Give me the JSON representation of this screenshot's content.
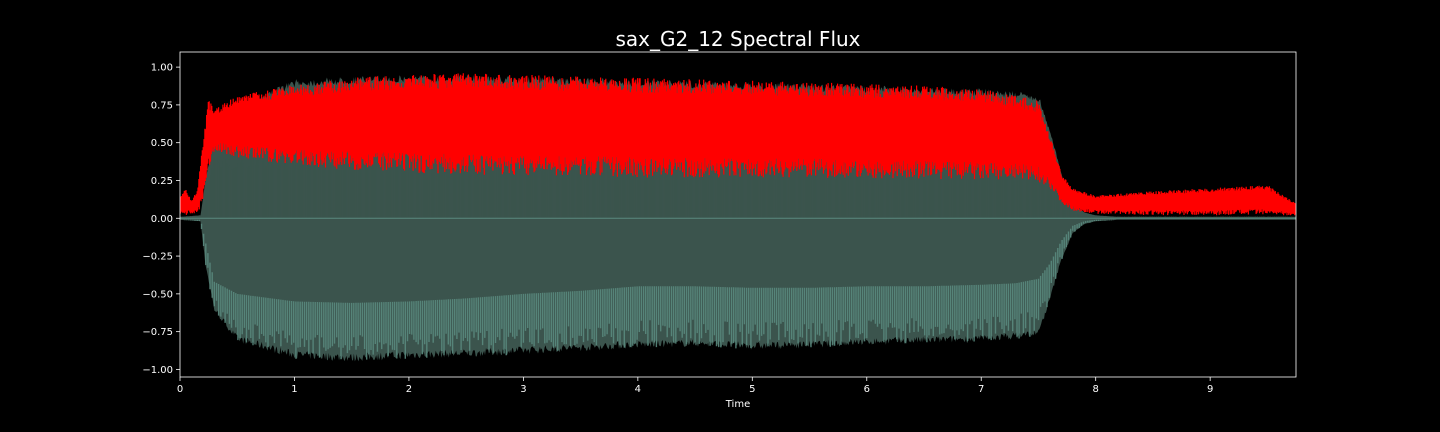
{
  "chart_data": {
    "type": "area",
    "title": "sax_G2_12 Spectral Flux",
    "xlabel": "Time",
    "ylabel": "",
    "xlim": [
      0,
      9.75
    ],
    "ylim": [
      -1.05,
      1.1
    ],
    "xticks": [
      0,
      1,
      2,
      3,
      4,
      5,
      6,
      7,
      8,
      9
    ],
    "xtick_labels": [
      "0",
      "1",
      "2",
      "3",
      "4",
      "5",
      "6",
      "7",
      "8",
      "9"
    ],
    "yticks": [
      1.0,
      0.75,
      0.5,
      0.25,
      0.0,
      -0.25,
      -0.5,
      -0.75,
      -1.0
    ],
    "ytick_labels": [
      "1.00",
      "0.75",
      "0.50",
      "0.25",
      "0.00",
      "−0.25",
      "−0.50",
      "−0.75",
      "−1.00"
    ],
    "grid": false,
    "legend": "none",
    "background": "#000000",
    "axes_color": "#ffffff",
    "series": [
      {
        "kind": "waveform-envelope",
        "color_outer": "#3b544d",
        "color_inner": "#5a8a7e",
        "x": [
          0,
          0.18,
          0.22,
          0.3,
          0.5,
          1.0,
          1.5,
          2.0,
          2.5,
          3.0,
          3.5,
          4.0,
          4.5,
          5.0,
          5.5,
          6.0,
          6.5,
          7.0,
          7.3,
          7.5,
          7.6,
          7.7,
          7.8,
          7.9,
          8.0,
          8.2,
          9.0,
          9.75
        ],
        "upper": [
          0.01,
          0.02,
          0.25,
          0.55,
          0.75,
          0.92,
          0.94,
          0.95,
          0.95,
          0.94,
          0.93,
          0.92,
          0.91,
          0.9,
          0.89,
          0.88,
          0.87,
          0.86,
          0.84,
          0.82,
          0.6,
          0.3,
          0.1,
          0.04,
          0.02,
          0.01,
          0.01,
          0.01
        ],
        "lower": [
          -0.01,
          -0.02,
          -0.3,
          -0.62,
          -0.82,
          -0.93,
          -0.95,
          -0.93,
          -0.92,
          -0.9,
          -0.88,
          -0.86,
          -0.85,
          -0.87,
          -0.86,
          -0.84,
          -0.83,
          -0.82,
          -0.8,
          -0.78,
          -0.55,
          -0.28,
          -0.1,
          -0.04,
          -0.02,
          -0.01,
          -0.01,
          -0.01
        ],
        "inner_upper": [
          0.01,
          0.01,
          0.1,
          0.38,
          0.38,
          0.4,
          0.39,
          0.38,
          0.37,
          0.36,
          0.35,
          0.34,
          0.34,
          0.33,
          0.32,
          0.32,
          0.31,
          0.3,
          0.29,
          0.28,
          0.22,
          0.12,
          0.04,
          0.02,
          0.01,
          0.01,
          0.01,
          0.01
        ],
        "inner_lower": [
          -0.01,
          -0.01,
          -0.15,
          -0.42,
          -0.5,
          -0.55,
          -0.56,
          -0.55,
          -0.53,
          -0.5,
          -0.48,
          -0.45,
          -0.45,
          -0.46,
          -0.46,
          -0.45,
          -0.45,
          -0.44,
          -0.43,
          -0.4,
          -0.3,
          -0.15,
          -0.05,
          -0.02,
          -0.01,
          -0.01,
          -0.01,
          -0.01
        ]
      },
      {
        "kind": "spectral-flux",
        "color": "#ff0000",
        "x": [
          0,
          0.05,
          0.1,
          0.15,
          0.2,
          0.25,
          0.3,
          0.5,
          1.0,
          1.5,
          2.0,
          2.5,
          3.0,
          3.5,
          4.0,
          4.5,
          5.0,
          5.5,
          6.0,
          6.5,
          7.0,
          7.3,
          7.5,
          7.6,
          7.7,
          7.8,
          8.0,
          8.5,
          9.0,
          9.5,
          9.75
        ],
        "upper": [
          0.15,
          0.2,
          0.12,
          0.18,
          0.5,
          0.8,
          0.72,
          0.82,
          0.88,
          0.93,
          0.95,
          0.96,
          0.95,
          0.94,
          0.93,
          0.92,
          0.91,
          0.9,
          0.89,
          0.88,
          0.86,
          0.82,
          0.78,
          0.55,
          0.3,
          0.2,
          0.15,
          0.18,
          0.2,
          0.22,
          0.1
        ],
        "lower": [
          0.02,
          0.02,
          0.03,
          0.03,
          0.1,
          0.3,
          0.45,
          0.4,
          0.35,
          0.32,
          0.3,
          0.29,
          0.28,
          0.28,
          0.27,
          0.27,
          0.27,
          0.27,
          0.26,
          0.26,
          0.25,
          0.25,
          0.24,
          0.2,
          0.1,
          0.05,
          0.03,
          0.02,
          0.02,
          0.02,
          0.02
        ]
      }
    ]
  }
}
